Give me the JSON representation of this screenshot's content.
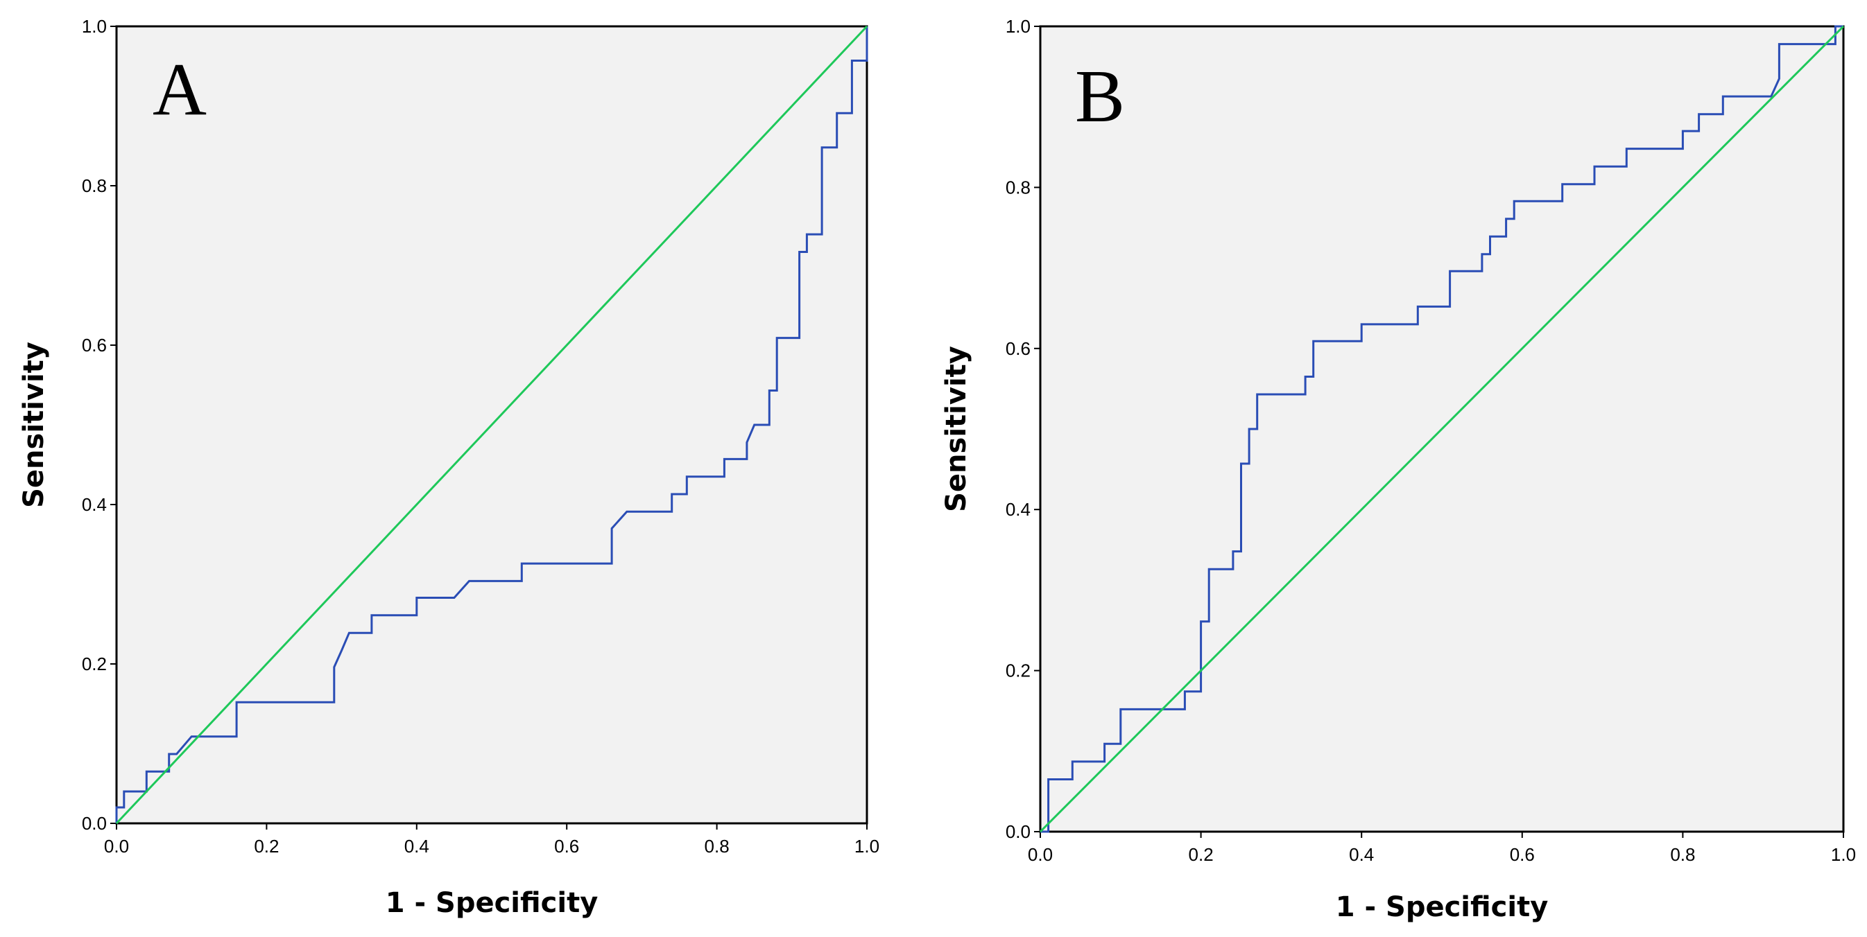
{
  "chart_data": [
    {
      "type": "line",
      "panel_label": "A",
      "xlabel": "1 - Specificity",
      "ylabel": "Sensitivity",
      "xlim": [
        0,
        1
      ],
      "ylim": [
        0,
        1
      ],
      "xticks": [
        "0.0",
        "0.2",
        "0.4",
        "0.6",
        "0.8",
        "1.0"
      ],
      "yticks": [
        "0.0",
        "0.2",
        "0.4",
        "0.6",
        "0.8",
        "1.0"
      ],
      "grid": false,
      "background": "#f2f2f2",
      "series": [
        {
          "name": "ROC curve",
          "color": "#2a4db5",
          "x": [
            0.0,
            0.0,
            0.01,
            0.01,
            0.04,
            0.04,
            0.07,
            0.07,
            0.08,
            0.1,
            0.1,
            0.16,
            0.16,
            0.29,
            0.29,
            0.3,
            0.31,
            0.31,
            0.34,
            0.34,
            0.4,
            0.4,
            0.45,
            0.47,
            0.54,
            0.54,
            0.66,
            0.66,
            0.68,
            0.74,
            0.74,
            0.76,
            0.76,
            0.81,
            0.81,
            0.84,
            0.84,
            0.85,
            0.86,
            0.87,
            0.87,
            0.88,
            0.88,
            0.91,
            0.91,
            0.92,
            0.92,
            0.94,
            0.94,
            0.96,
            0.96,
            0.98,
            0.98,
            1.0,
            1.0
          ],
          "y": [
            0.0,
            0.02,
            0.02,
            0.04,
            0.04,
            0.065,
            0.065,
            0.087,
            0.087,
            0.109,
            0.109,
            0.109,
            0.152,
            0.152,
            0.196,
            0.217,
            0.239,
            0.239,
            0.239,
            0.261,
            0.261,
            0.283,
            0.283,
            0.304,
            0.304,
            0.326,
            0.326,
            0.37,
            0.391,
            0.391,
            0.413,
            0.413,
            0.435,
            0.435,
            0.457,
            0.457,
            0.478,
            0.5,
            0.5,
            0.5,
            0.543,
            0.543,
            0.609,
            0.609,
            0.717,
            0.717,
            0.739,
            0.739,
            0.848,
            0.848,
            0.891,
            0.891,
            0.957,
            0.957,
            1.0
          ]
        },
        {
          "name": "Reference line",
          "color": "#1ec85a",
          "x": [
            0,
            1
          ],
          "y": [
            0,
            1
          ]
        }
      ]
    },
    {
      "type": "line",
      "panel_label": "B",
      "xlabel": "1 - Specificity",
      "ylabel": "Sensitivity",
      "xlim": [
        0,
        1
      ],
      "ylim": [
        0,
        1
      ],
      "xticks": [
        "0.0",
        "0.2",
        "0.4",
        "0.6",
        "0.8",
        "1.0"
      ],
      "yticks": [
        "0.0",
        "0.2",
        "0.4",
        "0.6",
        "0.8",
        "1.0"
      ],
      "grid": false,
      "background": "#f2f2f2",
      "series": [
        {
          "name": "ROC curve",
          "color": "#2a4db5",
          "x": [
            0.0,
            0.01,
            0.01,
            0.04,
            0.04,
            0.08,
            0.08,
            0.1,
            0.1,
            0.18,
            0.18,
            0.2,
            0.2,
            0.21,
            0.21,
            0.24,
            0.24,
            0.25,
            0.25,
            0.26,
            0.26,
            0.27,
            0.27,
            0.33,
            0.33,
            0.34,
            0.34,
            0.4,
            0.4,
            0.47,
            0.47,
            0.51,
            0.51,
            0.55,
            0.55,
            0.56,
            0.56,
            0.58,
            0.58,
            0.59,
            0.59,
            0.65,
            0.65,
            0.69,
            0.69,
            0.73,
            0.73,
            0.8,
            0.8,
            0.82,
            0.82,
            0.85,
            0.85,
            0.91,
            0.92,
            0.92,
            0.99,
            0.99,
            1.0
          ],
          "y": [
            0.0,
            0.0,
            0.065,
            0.065,
            0.087,
            0.087,
            0.109,
            0.109,
            0.152,
            0.152,
            0.174,
            0.174,
            0.261,
            0.261,
            0.326,
            0.326,
            0.348,
            0.348,
            0.457,
            0.457,
            0.5,
            0.5,
            0.543,
            0.543,
            0.565,
            0.565,
            0.609,
            0.609,
            0.63,
            0.63,
            0.652,
            0.652,
            0.696,
            0.696,
            0.717,
            0.717,
            0.739,
            0.739,
            0.761,
            0.761,
            0.783,
            0.783,
            0.804,
            0.804,
            0.826,
            0.826,
            0.848,
            0.848,
            0.87,
            0.87,
            0.891,
            0.891,
            0.913,
            0.913,
            0.935,
            0.978,
            0.978,
            1.0,
            1.0
          ]
        },
        {
          "name": "Reference line",
          "color": "#1ec85a",
          "x": [
            0,
            1
          ],
          "y": [
            0,
            1
          ]
        }
      ]
    }
  ]
}
